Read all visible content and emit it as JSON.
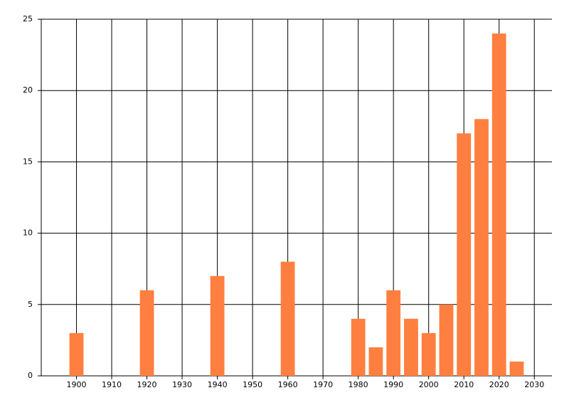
{
  "chart_data": {
    "type": "bar",
    "x": [
      1900,
      1920,
      1940,
      1960,
      1980,
      1985,
      1990,
      1995,
      2000,
      2005,
      2010,
      2015,
      2020,
      2025
    ],
    "values": [
      3,
      6,
      7,
      8,
      4,
      2,
      6,
      4,
      3,
      5,
      17,
      18,
      24,
      1
    ],
    "color": "#ff7f40",
    "xlim": [
      1890,
      2035
    ],
    "xticks": [
      1900,
      1910,
      1920,
      1930,
      1940,
      1950,
      1960,
      1970,
      1980,
      1990,
      2000,
      2010,
      2020,
      2030
    ],
    "ylim": [
      0,
      25
    ],
    "yticks": [
      0,
      5,
      10,
      15,
      20,
      25
    ],
    "grid": true
  }
}
